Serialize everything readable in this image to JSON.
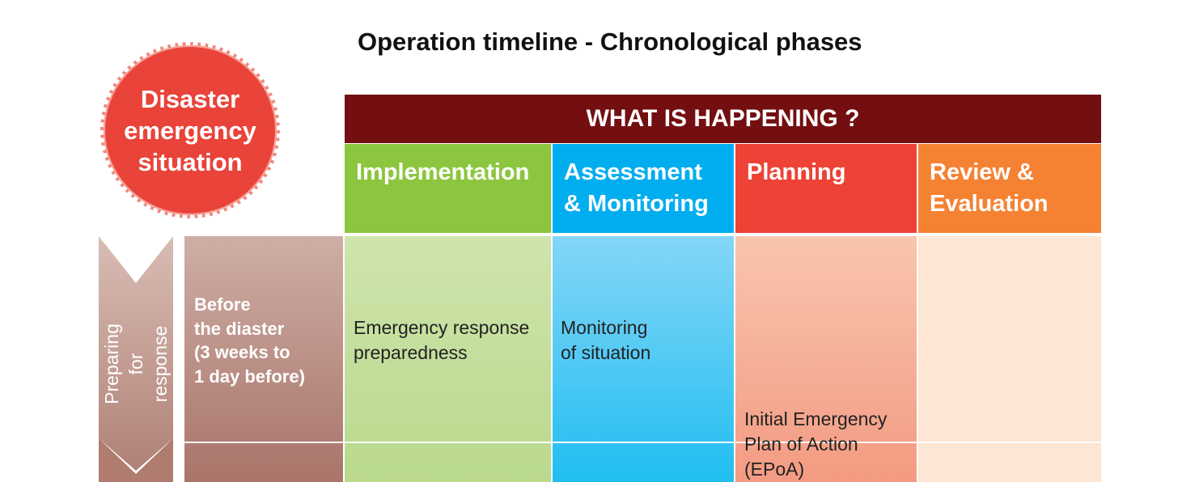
{
  "title": "Operation timeline - Chronological phases",
  "badge": "Disaster\nemergency\nsituation",
  "header": "WHAT IS HAPPENING ?",
  "phases": [
    {
      "label": "Implementation"
    },
    {
      "label": "Assessment\n& Monitoring"
    },
    {
      "label": "Planning"
    },
    {
      "label": "Review &\nEvaluation"
    }
  ],
  "stage": {
    "arrow_label": "Preparing for\nresponse",
    "timing_label": "Before\nthe diaster\n(3 weeks to\n1 day before)",
    "cells": [
      "Emergency response\npreparedness",
      "Monitoring\nof situation",
      "Initial Emergency\nPlan of Action\n(EPoA)",
      ""
    ]
  },
  "colors": {
    "badge": "#e9433a",
    "header": "#730f11",
    "implementation": "#8cc63e",
    "assessment": "#00aeef",
    "planning": "#ee4236",
    "review": "#f58232",
    "timing": "#b3847a"
  }
}
